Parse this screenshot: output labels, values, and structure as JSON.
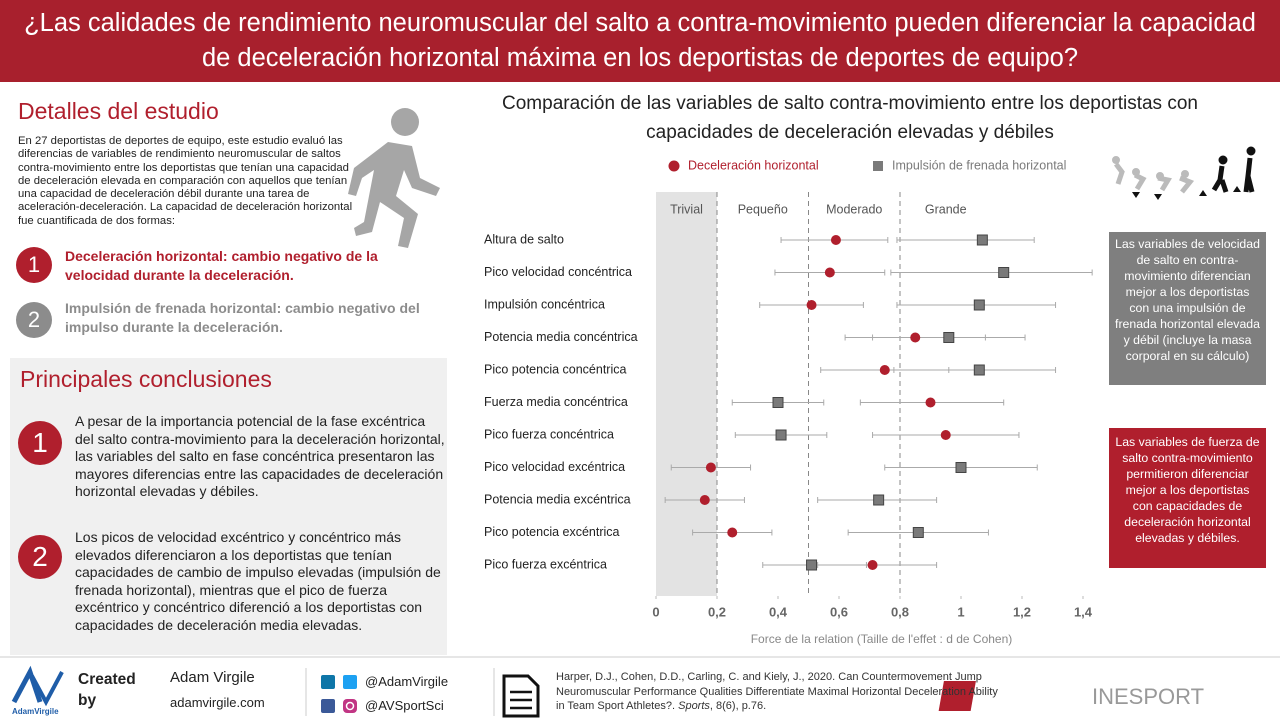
{
  "header": {
    "title": "¿Las calidades de rendimiento neuromuscular del salto a contra-movimiento pueden diferenciar la capacidad de deceleración horizontal máxima en los deportistas de deportes de equipo?"
  },
  "details": {
    "title": "Detalles del estudio",
    "text": "En 27 deportistas de deportes de equipo, este estudio evaluó las diferencias de variables de rendimiento neuromuscular de saltos contra-movimiento entre los deportistas que tenían una capacidad de deceleración elevada en comparación con aquellos que tenían una capacidad de deceleración débil durante una tarea de aceleración-deceleración.  La capacidad de deceleración horizontal fue cuantificada de dos formas:",
    "items": [
      {
        "number": "1",
        "text": "Deceleración horizontal: cambio negativo de la velocidad durante la deceleración."
      },
      {
        "number": "2",
        "text": "Impulsión de frenada horizontal: cambio negativo del impulso durante la deceleración."
      }
    ]
  },
  "conclusions": {
    "title": "Principales conclusiones",
    "items": [
      {
        "number": "1",
        "text": "A pesar de la importancia potencial de la fase excéntrica del salto contra-movimiento para la deceleración horizontal, las variables del salto en fase concéntrica presentaron las mayores diferencias entre las capacidades de deceleración horizontal elevadas y débiles."
      },
      {
        "number": "2",
        "text": "Los picos de velocidad excéntrico y concéntrico más elevados diferenciaron a los deportistas que tenían capacidades de cambio de impulso elevadas (impulsión de frenada horizontal), mientras que el pico de fuerza excéntrico y concéntrico diferenció a los deportistas con capacidades de deceleración media elevadas."
      }
    ]
  },
  "chart_data": {
    "type": "dot-errorbar",
    "title": "Comparación de las variables de salto contra-movimiento entre los deportistas con capacidades de deceleración elevadas y débiles",
    "x_label": "Force de la relation  (Taille de l'effet : d de Cohen)",
    "categories": [
      "Altura de salto",
      "Pico velocidad concéntrica",
      "Impulsión concéntrica",
      "Potencia media concéntrica",
      "Pico potencia concéntrica",
      "Fuerza media concéntrica",
      "Pico fuerza concéntrica",
      "Pico velocidad excéntrica",
      "Potencia media excéntrica",
      "Pico potencia excéntrica",
      "Pico fuerza excéntrica"
    ],
    "series": [
      {
        "name": "Deceleración horizontal",
        "color": "#b01f2d",
        "marker": "circle",
        "values": [
          0.59,
          0.57,
          0.51,
          0.85,
          0.75,
          0.9,
          0.95,
          0.18,
          0.16,
          0.25,
          0.71
        ],
        "low": [
          0.41,
          0.39,
          0.34,
          0.62,
          0.54,
          0.67,
          0.71,
          0.05,
          0.03,
          0.12,
          0.53
        ],
        "high": [
          0.76,
          0.75,
          0.68,
          1.08,
          0.96,
          1.14,
          1.19,
          0.31,
          0.29,
          0.38,
          0.92
        ]
      },
      {
        "name": "Impulsión  de frenada horizontal",
        "color": "#7a7a7a",
        "marker": "square",
        "values": [
          1.07,
          1.14,
          1.06,
          0.96,
          1.06,
          0.4,
          0.41,
          1.0,
          0.73,
          0.86,
          0.51
        ],
        "low": [
          0.79,
          0.77,
          0.79,
          0.71,
          0.78,
          0.25,
          0.26,
          0.75,
          0.53,
          0.63,
          0.35
        ],
        "high": [
          1.24,
          1.43,
          1.31,
          1.21,
          1.31,
          0.55,
          0.56,
          1.25,
          0.92,
          1.09,
          0.69
        ]
      }
    ],
    "zone_bounds": [
      0.2,
      0.5,
      0.8
    ],
    "zone_labels": [
      "Trivial",
      "Pequeño",
      "Moderado",
      "Grande"
    ],
    "xlim": [
      0,
      1.4
    ],
    "xticks": [
      0,
      {
        "value": 0.2,
        "label": "0,2"
      },
      {
        "value": 0.4,
        "label": "0,4"
      },
      {
        "value": 0.6,
        "label": "0,6"
      },
      {
        "value": 0.8,
        "label": "0,8"
      },
      1,
      {
        "value": 1.2,
        "label": "1,2"
      },
      {
        "value": 1.4,
        "label": "1,4"
      }
    ],
    "annotations": [
      "Las variables de velocidad de salto en contra-movimiento diferencian mejor a los deportistas  con una impulsión de frenada horizontal  elevada y débil (incluye la masa corporal  en su cálculo)",
      "Las variables de fuerza de salto contra-movimiento permitieron  diferenciar mejor a los deportistas con capacidades  de deceleración  horizontal elevadas  y débiles."
    ]
  },
  "footer": {
    "logo_text": "AdamVirgile",
    "created_by": "Created by",
    "name": "Adam Virgile",
    "website": "adamvirgile.com",
    "twitter": "@AdamVirgile",
    "instagram": "@AVSportSci",
    "citation": {
      "authors": "Harper, D.J.,  Cohen, D.D., Carling, C. and Kiely, J., 2020. Can Countermovement Jump Neuromuscular Performance Qualities Differentiate Maximal Horizontal Deceleration Ability in Team Sport Athletes?.",
      "journal": "Sports",
      "rest": ", 8(6), p.76."
    },
    "brand": {
      "initial": "K",
      "rest": "INESPORT"
    }
  }
}
